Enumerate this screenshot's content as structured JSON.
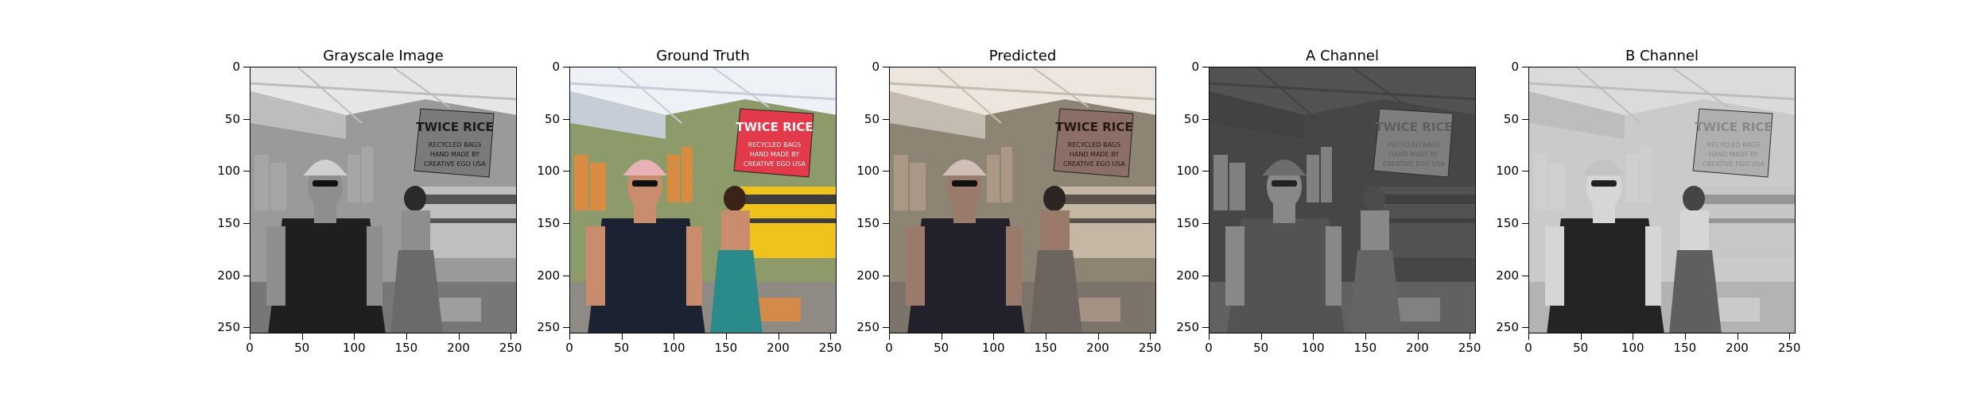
{
  "panels": [
    {
      "title": "Grayscale Image",
      "style": "grayscale",
      "x_ticks": [
        "0",
        "50",
        "100",
        "150",
        "200",
        "250"
      ],
      "y_ticks": [
        "0",
        "50",
        "100",
        "150",
        "200",
        "250"
      ]
    },
    {
      "title": "Ground Truth",
      "style": "color",
      "x_ticks": [
        "0",
        "50",
        "100",
        "150",
        "200",
        "250"
      ],
      "y_ticks": [
        "0",
        "50",
        "100",
        "150",
        "200",
        "250"
      ]
    },
    {
      "title": "Predicted",
      "style": "sepia",
      "x_ticks": [
        "0",
        "50",
        "100",
        "150",
        "200",
        "250"
      ],
      "y_ticks": [
        "0",
        "50",
        "100",
        "150",
        "200",
        "250"
      ]
    },
    {
      "title": "A Channel",
      "style": "a-channel",
      "x_ticks": [
        "0",
        "50",
        "100",
        "150",
        "200",
        "250"
      ],
      "y_ticks": [
        "0",
        "50",
        "100",
        "150",
        "200",
        "250"
      ]
    },
    {
      "title": "B Channel",
      "style": "b-channel",
      "x_ticks": [
        "0",
        "50",
        "100",
        "150",
        "200",
        "250"
      ],
      "y_ticks": [
        "0",
        "50",
        "100",
        "150",
        "200",
        "250"
      ]
    }
  ],
  "sign": {
    "line1": "TWICE RICE",
    "line2": "RECYCLED BAGS",
    "line3": "HAND MADE BY",
    "line4": "CREATIVE EGO USA"
  },
  "axis_extent": {
    "min": 0,
    "max": 256
  }
}
